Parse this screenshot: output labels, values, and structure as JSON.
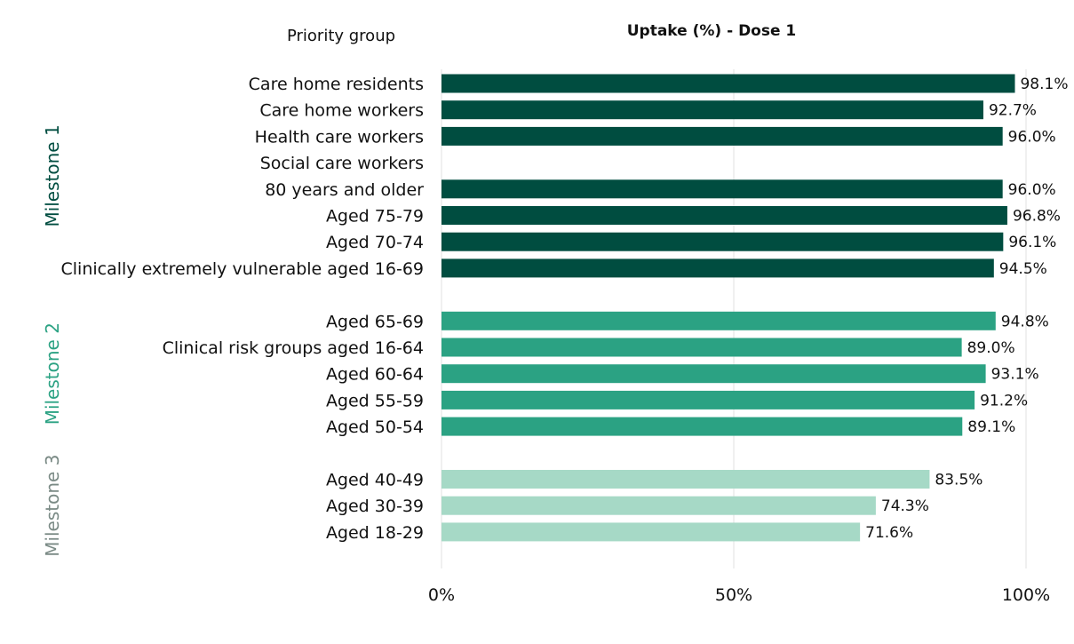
{
  "header": {
    "category_heading": "Priority group",
    "title": "Uptake (%) - Dose 1"
  },
  "colors": {
    "milestone_1": "#004d40",
    "milestone_2": "#2ba283",
    "milestone_3": "#a6d9c6",
    "milestone_3_label": "#7a8a85"
  },
  "chart_data": {
    "type": "bar",
    "orientation": "horizontal",
    "title": "Uptake (%) - Dose 1",
    "xlabel": "",
    "ylabel": "Priority group",
    "xlim": [
      0,
      100
    ],
    "x_ticks": [
      "0%",
      "50%",
      "100%"
    ],
    "grid": true,
    "groups": [
      {
        "name": "Milestone 1",
        "color": "#004d40",
        "label_color": "#004d40",
        "categories": [
          "Care home residents",
          "Care home workers",
          "Health care workers",
          "Social care workers",
          "80 years and older",
          "Aged 75-79",
          "Aged 70-74",
          "Clinically extremely vulnerable aged 16-69"
        ],
        "values": [
          98.1,
          92.7,
          96.0,
          null,
          96.0,
          96.8,
          96.1,
          94.5
        ],
        "value_labels": [
          "98.1%",
          "92.7%",
          "96.0%",
          "",
          "96.0%",
          "96.8%",
          "96.1%",
          "94.5%"
        ]
      },
      {
        "name": "Milestone 2",
        "color": "#2ba283",
        "label_color": "#2ba283",
        "categories": [
          "Aged 65-69",
          "Clinical risk groups aged 16-64",
          "Aged 60-64",
          "Aged 55-59",
          "Aged 50-54"
        ],
        "values": [
          94.8,
          89.0,
          93.1,
          91.2,
          89.1
        ],
        "value_labels": [
          "94.8%",
          "89.0%",
          "93.1%",
          "91.2%",
          "89.1%"
        ]
      },
      {
        "name": "Milestone 3",
        "color": "#a6d9c6",
        "label_color": "#7a8a85",
        "categories": [
          "Aged 40-49",
          "Aged 30-39",
          "Aged 18-29"
        ],
        "values": [
          83.5,
          74.3,
          71.6
        ],
        "value_labels": [
          "83.5%",
          "74.3%",
          "71.6%"
        ]
      }
    ]
  }
}
